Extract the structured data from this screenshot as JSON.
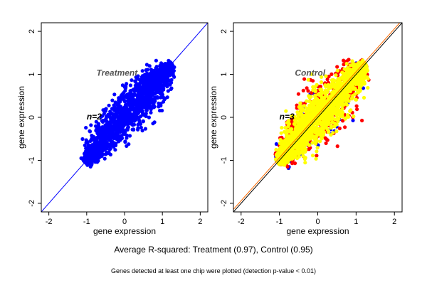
{
  "chart_data": [
    {
      "type": "scatter",
      "panel_label": "Treatment",
      "n_label": "n=2",
      "xlabel": "gene expression",
      "ylabel": "gene expression",
      "xlim": [
        -2.2,
        2.2
      ],
      "ylim": [
        -2.2,
        2.2
      ],
      "xticks": [
        "-2",
        "-1",
        "0",
        "1",
        "2"
      ],
      "yticks": [
        "-2",
        "-1",
        "0",
        "1",
        "2"
      ],
      "point_colors": [
        "#0000ff"
      ],
      "point_range": [
        -1.05,
        1.25
      ],
      "diagonal_lines": [
        {
          "slope": 1,
          "intercept": 0,
          "color": "#0000ff"
        }
      ]
    },
    {
      "type": "scatter",
      "panel_label": "Control",
      "n_label": "n=3",
      "xlabel": "gene expression",
      "ylabel": "gene expression",
      "xlim": [
        -2.2,
        2.2
      ],
      "ylim": [
        -2.2,
        2.2
      ],
      "xticks": [
        "-2",
        "-1",
        "0",
        "1",
        "2"
      ],
      "yticks": [
        "-2",
        "-1",
        "0",
        "1",
        "2"
      ],
      "point_colors": [
        "#0000ff",
        "#ff0000",
        "#ffff00"
      ],
      "point_range": [
        -1.05,
        1.25
      ],
      "diagonal_lines": [
        {
          "slope": 1,
          "intercept": 0.0,
          "color": "#000000"
        },
        {
          "slope": 1,
          "intercept": 0.06,
          "color": "#ff6a00"
        }
      ]
    }
  ],
  "footer": {
    "summary": "Average R-squared: Treatment (0.97), Control (0.95)",
    "note": "Genes detected at least one chip were plotted (detection p-value < 0.01)"
  }
}
